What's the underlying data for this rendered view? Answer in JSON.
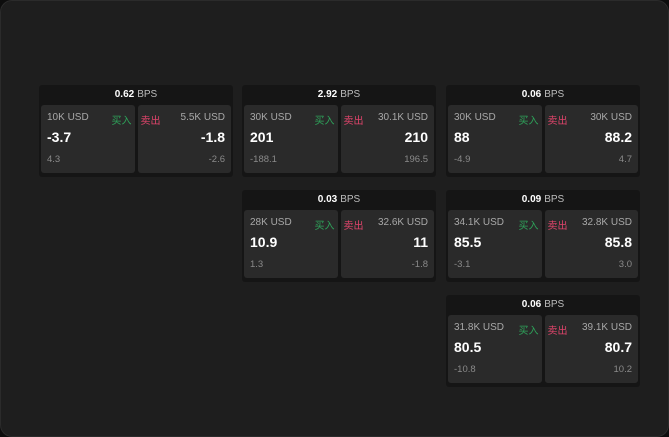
{
  "labels": {
    "unit": "BPS",
    "buy": "买入",
    "sell": "卖出"
  },
  "colors": {
    "buy": "#2ea35a",
    "sell": "#e0446b"
  },
  "cards": [
    {
      "spread": "0.62",
      "buy": {
        "qty": "10K USD",
        "price": "-3.7",
        "diff": "4.3"
      },
      "sell": {
        "qty": "5.5K USD",
        "price": "-1.8",
        "diff": "-2.6"
      }
    },
    {
      "spread": "2.92",
      "buy": {
        "qty": "30K USD",
        "price": "201",
        "diff": "-188.1"
      },
      "sell": {
        "qty": "30.1K USD",
        "price": "210",
        "diff": "196.5"
      }
    },
    {
      "spread": "0.06",
      "buy": {
        "qty": "30K USD",
        "price": "88",
        "diff": "-4.9"
      },
      "sell": {
        "qty": "30K USD",
        "price": "88.2",
        "diff": "4.7"
      }
    },
    {
      "spread": "0.03",
      "buy": {
        "qty": "28K USD",
        "price": "10.9",
        "diff": "1.3"
      },
      "sell": {
        "qty": "32.6K USD",
        "price": "11",
        "diff": "-1.8"
      }
    },
    {
      "spread": "0.09",
      "buy": {
        "qty": "34.1K USD",
        "price": "85.5",
        "diff": "-3.1"
      },
      "sell": {
        "qty": "32.8K USD",
        "price": "85.8",
        "diff": "3.0"
      }
    },
    {
      "spread": "0.06",
      "buy": {
        "qty": "31.8K USD",
        "price": "80.5",
        "diff": "-10.8"
      },
      "sell": {
        "qty": "39.1K USD",
        "price": "80.7",
        "diff": "10.2"
      }
    }
  ]
}
